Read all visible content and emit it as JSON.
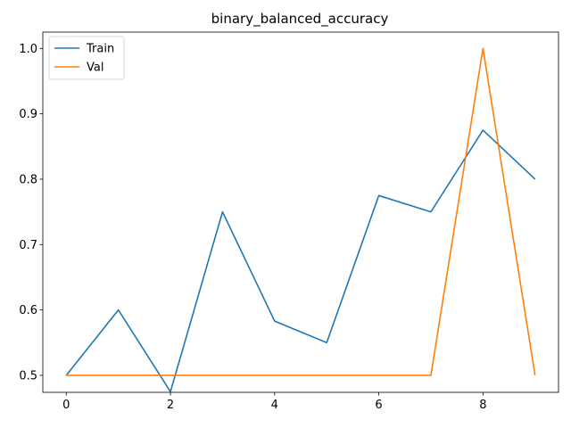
{
  "chart_data": {
    "type": "line",
    "title": "binary_balanced_accuracy",
    "xlabel": "",
    "ylabel": "",
    "x": [
      0,
      1,
      2,
      3,
      4,
      5,
      6,
      7,
      8,
      9
    ],
    "xlim": [
      -0.45,
      9.45
    ],
    "ylim": [
      0.474,
      1.025
    ],
    "xticks": [
      0,
      2,
      4,
      6,
      8
    ],
    "yticks": [
      0.5,
      0.6,
      0.7,
      0.8,
      0.9,
      1.0
    ],
    "xtick_labels": [
      "0",
      "2",
      "4",
      "6",
      "8"
    ],
    "ytick_labels": [
      "0.5",
      "0.6",
      "0.7",
      "0.8",
      "0.9",
      "1.0"
    ],
    "grid": false,
    "legend_position": "top-left",
    "series": [
      {
        "name": "Train",
        "color": "#1f77b4",
        "values": [
          0.5,
          0.6,
          0.475,
          0.75,
          0.583,
          0.55,
          0.775,
          0.75,
          0.875,
          0.8
        ]
      },
      {
        "name": "Val",
        "color": "#ff7f0e",
        "values": [
          0.5,
          0.5,
          0.5,
          0.5,
          0.5,
          0.5,
          0.5,
          0.5,
          1.0,
          0.5
        ]
      }
    ]
  }
}
